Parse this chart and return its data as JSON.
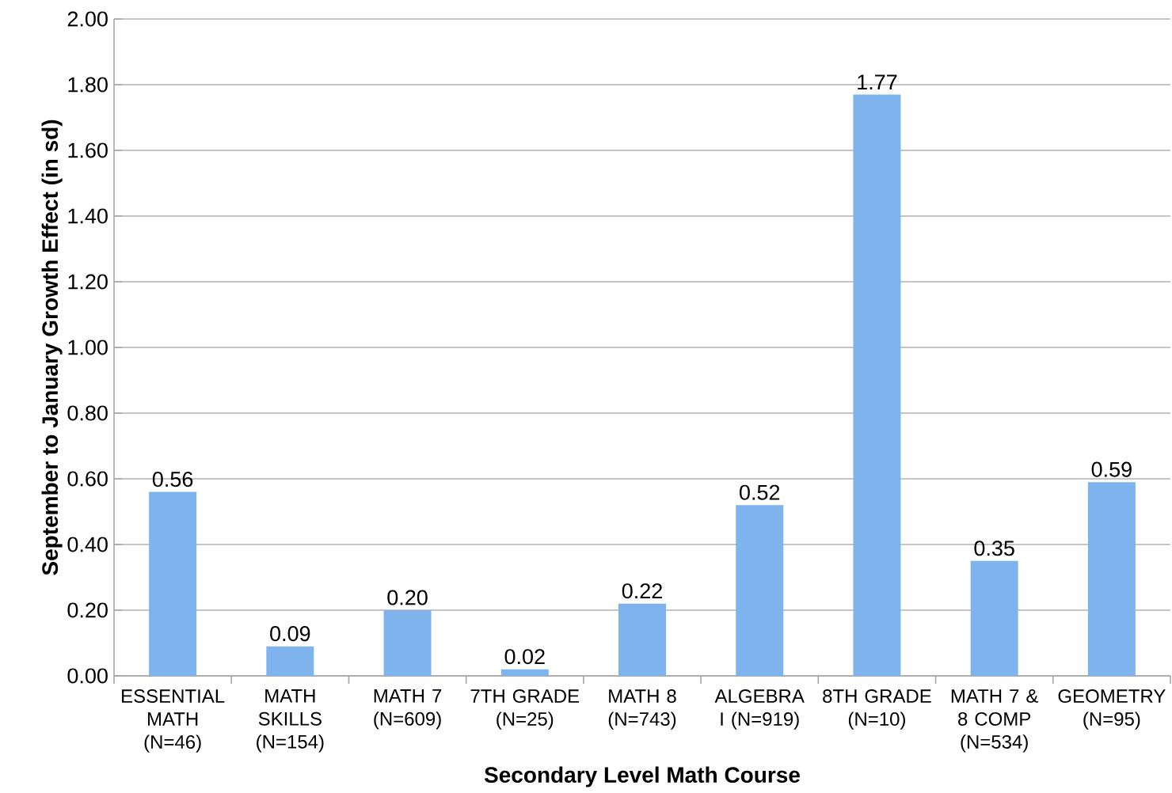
{
  "chart_data": {
    "type": "bar",
    "xlabel": "Secondary Level Math Course",
    "ylabel": "September to January Growth Effect (in sd)",
    "categories": [
      "ESSENTIAL MATH (N=46)",
      "MATH SKILLS (N=154)",
      "MATH 7 (N=609)",
      "7TH GRADE (N=25)",
      "MATH 8 (N=743)",
      "ALGEBRA I (N=919)",
      "8TH GRADE (N=10)",
      "MATH 7 & 8 COMP (N=534)",
      "GEOMETRY (N=95)"
    ],
    "values": [
      0.56,
      0.09,
      0.2,
      0.02,
      0.22,
      0.52,
      1.77,
      0.35,
      0.59
    ],
    "value_labels": [
      "0.56",
      "0.09",
      "0.20",
      "0.02",
      "0.22",
      "0.52",
      "1.77",
      "0.35",
      "0.59"
    ],
    "color": "#7fb3ee",
    "ylim": [
      0,
      2
    ],
    "yticks": [
      {
        "value": 0,
        "label": "0.00"
      },
      {
        "value": 0.2,
        "label": "0.20"
      },
      {
        "value": 0.4,
        "label": "0.40"
      },
      {
        "value": 0.6,
        "label": "0.60"
      },
      {
        "value": 0.8,
        "label": "0.80"
      },
      {
        "value": 1.0,
        "label": "1.00"
      },
      {
        "value": 1.2,
        "label": "1.20"
      },
      {
        "value": 1.4,
        "label": "1.40"
      },
      {
        "value": 1.6,
        "label": "1.60"
      },
      {
        "value": 1.8,
        "label": "1.80"
      },
      {
        "value": 2.0,
        "label": "2.00"
      }
    ],
    "grid": "y"
  }
}
